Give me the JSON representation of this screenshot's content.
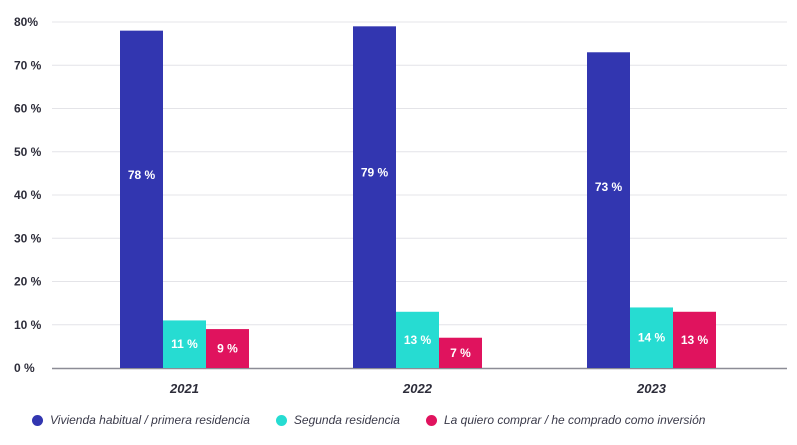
{
  "chart_data": {
    "type": "bar",
    "title": "",
    "xlabel": "",
    "ylabel": "",
    "categories": [
      "2021",
      "2022",
      "2023"
    ],
    "ylim": [
      0,
      80
    ],
    "yticks": [
      "0 %",
      "10 %",
      "20 %",
      "30 %",
      "40 %",
      "50 %",
      "60 %",
      "70 %",
      "80%"
    ],
    "grid": true,
    "legend_position": "bottom",
    "series": [
      {
        "name": "Vivienda habitual / primera residencia",
        "color": "#3236b0",
        "values": [
          78,
          79,
          73
        ],
        "labels": [
          "78 %",
          "79 %",
          "73 %"
        ]
      },
      {
        "name": "Segunda residencia",
        "color": "#26dcd2",
        "values": [
          11,
          13,
          14
        ],
        "labels": [
          "11 %",
          "13 %",
          "14 %"
        ]
      },
      {
        "name": "La quiero comprar / he comprado como inversión",
        "color": "#e0135e",
        "values": [
          9,
          7,
          13
        ],
        "labels": [
          "9 %",
          "7 %",
          "13 %"
        ]
      }
    ]
  }
}
